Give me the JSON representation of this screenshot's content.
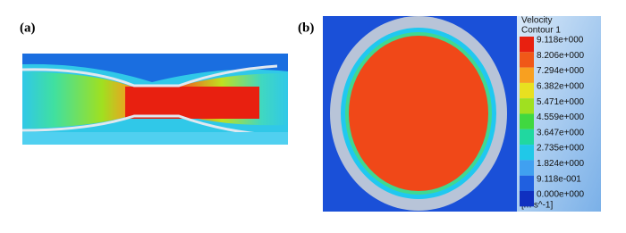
{
  "panels": {
    "a": {
      "label": "(a)"
    },
    "b": {
      "label": "(b)"
    }
  },
  "legend": {
    "title": [
      "Velocity",
      "Contour 1"
    ],
    "levels": [
      "9.118e+000",
      "8.206e+000",
      "7.294e+000",
      "6.382e+000",
      "5.471e+000",
      "4.559e+000",
      "3.647e+000",
      "2.735e+000",
      "1.824e+000",
      "9.118e-001",
      "0.000e+000"
    ],
    "unit": "[m s^-1]"
  }
}
